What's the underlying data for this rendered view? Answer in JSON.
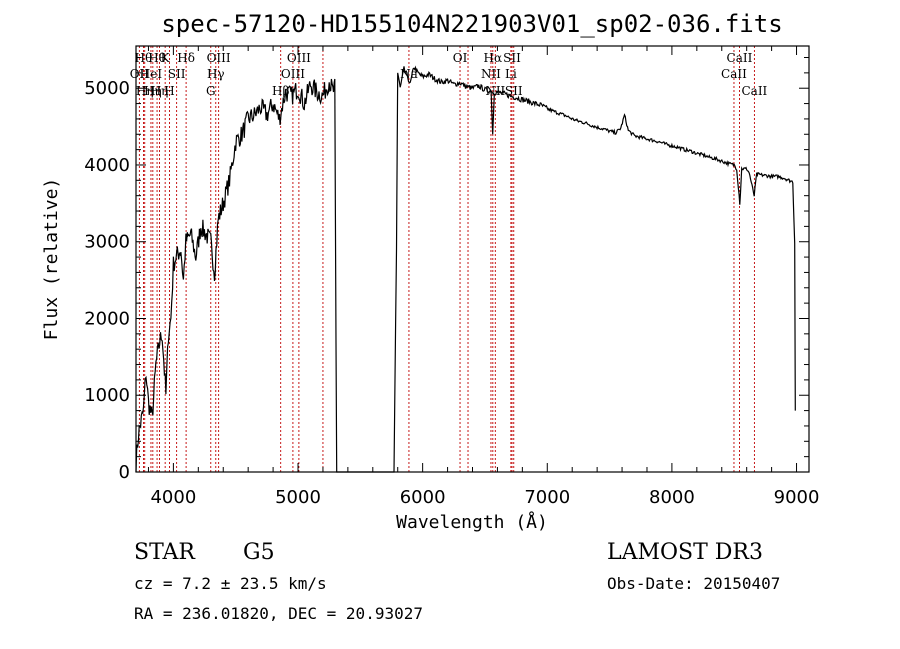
{
  "chart_data": {
    "type": "line",
    "title": "spec-57120-HD155104N221903V01_sp02-036.fits",
    "xlabel": "Wavelength (Å)",
    "ylabel": "Flux (relative)",
    "xlim": [
      3700,
      9100
    ],
    "ylim": [
      0,
      5550
    ],
    "x_ticks": [
      4000,
      5000,
      6000,
      7000,
      8000,
      9000
    ],
    "y_ticks": [
      0,
      1000,
      2000,
      3000,
      4000,
      5000
    ],
    "grid": false,
    "spectrum_anchors": [
      [
        3700,
        120
      ],
      [
        3720,
        500
      ],
      [
        3760,
        800
      ],
      [
        3780,
        1300
      ],
      [
        3800,
        900
      ],
      [
        3830,
        700
      ],
      [
        3860,
        1400
      ],
      [
        3890,
        1700
      ],
      [
        3910,
        1800
      ],
      [
        3940,
        1000
      ],
      [
        3960,
        1800
      ],
      [
        3980,
        2000
      ],
      [
        4000,
        2700
      ],
      [
        4020,
        2800
      ],
      [
        4060,
        2900
      ],
      [
        4080,
        2500
      ],
      [
        4100,
        3000
      ],
      [
        4140,
        3100
      ],
      [
        4180,
        2800
      ],
      [
        4220,
        3200
      ],
      [
        4260,
        3100
      ],
      [
        4300,
        3000
      ],
      [
        4330,
        2600
      ],
      [
        4360,
        3300
      ],
      [
        4400,
        3500
      ],
      [
        4450,
        3800
      ],
      [
        4500,
        4300
      ],
      [
        4550,
        4400
      ],
      [
        4600,
        4600
      ],
      [
        4650,
        4650
      ],
      [
        4700,
        4750
      ],
      [
        4750,
        4650
      ],
      [
        4800,
        4800
      ],
      [
        4850,
        4600
      ],
      [
        4900,
        4950
      ],
      [
        4950,
        4900
      ],
      [
        5000,
        5000
      ],
      [
        5050,
        4800
      ],
      [
        5100,
        5050
      ],
      [
        5150,
        4950
      ],
      [
        5200,
        4900
      ],
      [
        5250,
        5100
      ],
      [
        5280,
        4950
      ],
      [
        5295,
        5000
      ],
      [
        5310,
        0
      ],
      [
        5770,
        0
      ],
      [
        5790,
        2900
      ],
      [
        5800,
        5200
      ],
      [
        5820,
        5000
      ],
      [
        5850,
        5250
      ],
      [
        5880,
        5150
      ],
      [
        5900,
        5050
      ],
      [
        5930,
        5280
      ],
      [
        5960,
        5200
      ],
      [
        6000,
        5150
      ],
      [
        6050,
        5180
      ],
      [
        6100,
        5120
      ],
      [
        6150,
        5080
      ],
      [
        6200,
        5100
      ],
      [
        6250,
        5050
      ],
      [
        6300,
        5070
      ],
      [
        6350,
        5020
      ],
      [
        6400,
        5000
      ],
      [
        6450,
        5030
      ],
      [
        6500,
        4980
      ],
      [
        6550,
        4960
      ],
      [
        6562,
        4400
      ],
      [
        6575,
        4950
      ],
      [
        6600,
        4950
      ],
      [
        6650,
        4930
      ],
      [
        6700,
        4900
      ],
      [
        6750,
        4880
      ],
      [
        6800,
        4850
      ],
      [
        6850,
        4830
      ],
      [
        6900,
        4800
      ],
      [
        6950,
        4780
      ],
      [
        7000,
        4730
      ],
      [
        7050,
        4700
      ],
      [
        7100,
        4670
      ],
      [
        7150,
        4640
      ],
      [
        7200,
        4600
      ],
      [
        7250,
        4570
      ],
      [
        7300,
        4550
      ],
      [
        7350,
        4520
      ],
      [
        7400,
        4490
      ],
      [
        7450,
        4470
      ],
      [
        7500,
        4440
      ],
      [
        7550,
        4420
      ],
      [
        7590,
        4480
      ],
      [
        7620,
        4650
      ],
      [
        7650,
        4450
      ],
      [
        7700,
        4380
      ],
      [
        7750,
        4360
      ],
      [
        7800,
        4340
      ],
      [
        7850,
        4320
      ],
      [
        7900,
        4300
      ],
      [
        7950,
        4270
      ],
      [
        8000,
        4250
      ],
      [
        8050,
        4230
      ],
      [
        8100,
        4200
      ],
      [
        8150,
        4180
      ],
      [
        8200,
        4150
      ],
      [
        8250,
        4130
      ],
      [
        8300,
        4100
      ],
      [
        8350,
        4080
      ],
      [
        8400,
        4050
      ],
      [
        8450,
        4020
      ],
      [
        8500,
        4000
      ],
      [
        8520,
        3950
      ],
      [
        8545,
        3500
      ],
      [
        8560,
        3950
      ],
      [
        8600,
        3950
      ],
      [
        8620,
        3900
      ],
      [
        8660,
        3600
      ],
      [
        8680,
        3880
      ],
      [
        8720,
        3870
      ],
      [
        8760,
        3860
      ],
      [
        8800,
        3850
      ],
      [
        8850,
        3850
      ],
      [
        8900,
        3830
      ],
      [
        8940,
        3800
      ],
      [
        8970,
        3780
      ],
      [
        8985,
        3000
      ],
      [
        8990,
        800
      ]
    ],
    "spectral_lines": [
      {
        "wl": 3727,
        "label": "OII",
        "row": 2
      },
      {
        "wl": 3760,
        "label": "Hθ",
        "row": 1
      },
      {
        "wl": 3770,
        "label": "Hη",
        "row": 3
      },
      {
        "wl": 3820,
        "label": "HeI",
        "row": 2
      },
      {
        "wl": 3835,
        "label": "Hη",
        "row": 3
      },
      {
        "wl": 3869,
        "label": "Hθ",
        "row": 1
      },
      {
        "wl": 3889,
        "label": "Hη",
        "row": 3
      },
      {
        "wl": 3934,
        "label": "K",
        "row": 1
      },
      {
        "wl": 3969,
        "label": "H",
        "row": 3
      },
      {
        "wl": 4026,
        "label": "SII",
        "row": 2
      },
      {
        "wl": 4102,
        "label": "Hδ",
        "row": 1
      },
      {
        "wl": 4300,
        "label": "G",
        "row": 3
      },
      {
        "wl": 4340,
        "label": "Hγ",
        "row": 2
      },
      {
        "wl": 4363,
        "label": "OIII",
        "row": 1
      },
      {
        "wl": 4861,
        "label": "Hβ",
        "row": 3
      },
      {
        "wl": 4959,
        "label": "OIII",
        "row": 2
      },
      {
        "wl": 5007,
        "label": "OIII",
        "row": 1
      },
      {
        "wl": 5200,
        "label": "",
        "row": 0
      },
      {
        "wl": 5890,
        "label": "Na",
        "row": 2
      },
      {
        "wl": 6300,
        "label": "OI",
        "row": 1
      },
      {
        "wl": 6364,
        "label": "",
        "row": 0
      },
      {
        "wl": 6548,
        "label": "NII",
        "row": 2
      },
      {
        "wl": 6563,
        "label": "Hα",
        "row": 1
      },
      {
        "wl": 6583,
        "label": "NII",
        "row": 3
      },
      {
        "wl": 6708,
        "label": "Li",
        "row": 2
      },
      {
        "wl": 6717,
        "label": "SII",
        "row": 1
      },
      {
        "wl": 6731,
        "label": "SII",
        "row": 3
      },
      {
        "wl": 8498,
        "label": "CaII",
        "row": 2
      },
      {
        "wl": 8542,
        "label": "CaII",
        "row": 1
      },
      {
        "wl": 8662,
        "label": "CaII",
        "row": 3
      }
    ],
    "colors": {
      "spectrum": "#000000",
      "lines": "#c00000",
      "axes": "#000000"
    }
  },
  "info": {
    "class": "STAR",
    "subclass": "G5",
    "survey": "LAMOST DR3",
    "cz": "cz = 7.2 ± 23.5 km/s",
    "obs_date": "Obs-Date: 20150407",
    "coords": "RA = 236.01820, DEC =  20.93027"
  }
}
